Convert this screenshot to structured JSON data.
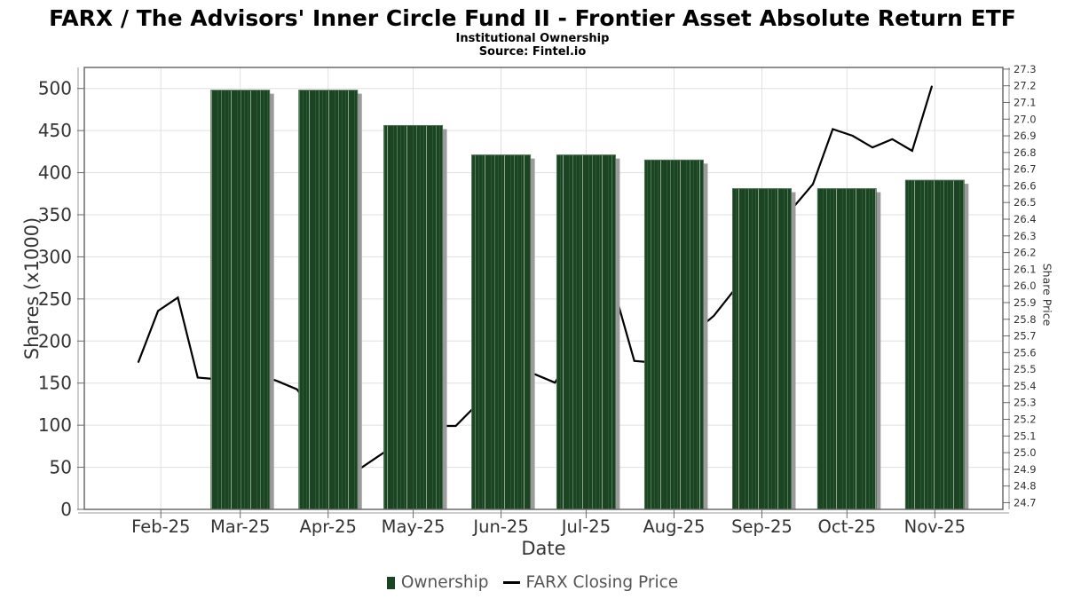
{
  "colors": {
    "bar": "#1B4522",
    "bar_stripe_mid": "#2E5834",
    "bar_stripe_light": "#567B5B",
    "bar_stripe_bright": "#8EA390",
    "bar_edge": "#4F7054",
    "bar_shadow": "#9B9B9B",
    "line": "#000000",
    "grid": "#E0E0E0",
    "border": "#6B6B6B",
    "spine": "#9B9B9B",
    "tick_text": "#333333",
    "legend_text": "#555555",
    "title_text": "#000000",
    "background": "#FFFFFF"
  },
  "chart_data": {
    "type": "combo-bar-line",
    "title": "FARX / The Advisors' Inner Circle Fund II - Frontier Asset Absolute Return ETF",
    "subtitle": "Institutional Ownership",
    "source": "Source: Fintel.io",
    "legend_position": "bottom",
    "grid": true,
    "x_axis": {
      "label": "Date",
      "type": "time",
      "domain": [
        "2025-01-05",
        "2025-11-25"
      ],
      "tick_labels": [
        "Feb-25",
        "Mar-25",
        "Apr-25",
        "May-25",
        "Jun-25",
        "Jul-25",
        "Aug-25",
        "Sep-25",
        "Oct-25",
        "Nov-25"
      ],
      "tick_dates": [
        "2025-02-01",
        "2025-03-01",
        "2025-04-01",
        "2025-05-01",
        "2025-06-01",
        "2025-07-01",
        "2025-08-01",
        "2025-09-01",
        "2025-10-01",
        "2025-11-01"
      ]
    },
    "y_left": {
      "label": "Shares (x1000)",
      "domain": [
        0,
        525
      ],
      "ticks": [
        0,
        50,
        100,
        150,
        200,
        250,
        300,
        350,
        400,
        450,
        500
      ]
    },
    "y_right": {
      "label": "Share Price",
      "domain": [
        24.66,
        27.31
      ],
      "ticks": [
        "24.7",
        "24.8",
        "24.9",
        "25.0",
        "25.1",
        "25.2",
        "25.3",
        "25.4",
        "25.5",
        "25.6",
        "25.7",
        "25.8",
        "25.9",
        "26.0",
        "26.1",
        "26.2",
        "26.3",
        "26.4",
        "26.5",
        "26.6",
        "26.7",
        "26.8",
        "26.9",
        "27.0",
        "27.1",
        "27.2",
        "27.3"
      ]
    },
    "series": [
      {
        "name": "Ownership",
        "type": "bar",
        "axis": "left",
        "unit": "shares x1000",
        "categories": [
          "Mar-25",
          "Apr-25",
          "May-25",
          "Jun-25",
          "Jul-25",
          "Aug-25",
          "Sep-25",
          "Oct-25",
          "Nov-25"
        ],
        "dates": [
          "2025-03-01",
          "2025-04-01",
          "2025-05-01",
          "2025-06-01",
          "2025-07-01",
          "2025-08-01",
          "2025-09-01",
          "2025-10-01",
          "2025-11-01"
        ],
        "values": [
          498,
          498,
          456,
          421,
          421,
          415,
          381,
          381,
          391
        ]
      },
      {
        "name": "FARX Closing Price",
        "type": "line",
        "axis": "right",
        "unit": "USD",
        "dates": [
          "2025-01-24",
          "2025-01-31",
          "2025-02-07",
          "2025-02-14",
          "2025-02-21",
          "2025-02-28",
          "2025-03-07",
          "2025-03-14",
          "2025-03-21",
          "2025-03-28",
          "2025-04-04",
          "2025-04-11",
          "2025-04-18",
          "2025-04-25",
          "2025-05-02",
          "2025-05-09",
          "2025-05-16",
          "2025-05-23",
          "2025-05-30",
          "2025-06-06",
          "2025-06-13",
          "2025-06-20",
          "2025-06-27",
          "2025-07-04",
          "2025-07-11",
          "2025-07-18",
          "2025-07-25",
          "2025-08-01",
          "2025-08-08",
          "2025-08-15",
          "2025-08-22",
          "2025-08-29",
          "2025-09-05",
          "2025-09-12",
          "2025-09-19",
          "2025-09-26",
          "2025-10-03",
          "2025-10-10",
          "2025-10-17",
          "2025-10-24",
          "2025-10-31"
        ],
        "values": [
          25.54,
          25.85,
          25.93,
          25.45,
          25.44,
          25.46,
          25.47,
          25.43,
          25.38,
          25.22,
          25.02,
          24.89,
          24.97,
          25.05,
          25.11,
          25.16,
          25.16,
          25.28,
          25.37,
          25.44,
          25.47,
          25.42,
          25.61,
          25.72,
          25.97,
          25.55,
          25.54,
          25.62,
          25.72,
          25.82,
          25.97,
          26.12,
          26.3,
          26.47,
          26.61,
          26.94,
          26.9,
          26.83,
          26.88,
          26.81,
          27.2
        ]
      }
    ]
  }
}
